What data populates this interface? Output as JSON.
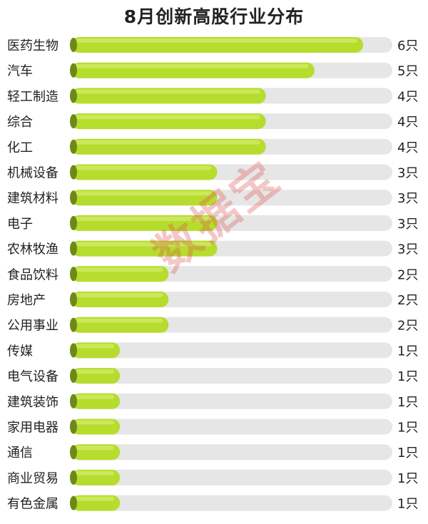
{
  "title": "8月创新高股行业分布",
  "watermark": "数据宝",
  "colors": {
    "bar_fill": "#b6dc2d",
    "bar_highlight": "#cbe85a",
    "track": "#e6e6e6",
    "cap": "#6e8a16",
    "text": "#222222"
  },
  "chart_data": {
    "type": "bar",
    "orientation": "horizontal",
    "title": "8月创新高股行业分布",
    "value_suffix": "只",
    "xlim": [
      0,
      6.6
    ],
    "categories": [
      "医药生物",
      "汽车",
      "轻工制造",
      "综合",
      "化工",
      "机械设备",
      "建筑材料",
      "电子",
      "农林牧渔",
      "食品饮料",
      "房地产",
      "公用事业",
      "传媒",
      "电气设备",
      "建筑装饰",
      "家用电器",
      "通信",
      "商业贸易",
      "有色金属"
    ],
    "values": [
      6,
      5,
      4,
      4,
      4,
      3,
      3,
      3,
      3,
      2,
      2,
      2,
      1,
      1,
      1,
      1,
      1,
      1,
      1
    ],
    "value_labels": [
      "6只",
      "5只",
      "4只",
      "4只",
      "4只",
      "3只",
      "3只",
      "3只",
      "3只",
      "2只",
      "2只",
      "2只",
      "1只",
      "1只",
      "1只",
      "1只",
      "1只",
      "1只",
      "1只"
    ]
  }
}
